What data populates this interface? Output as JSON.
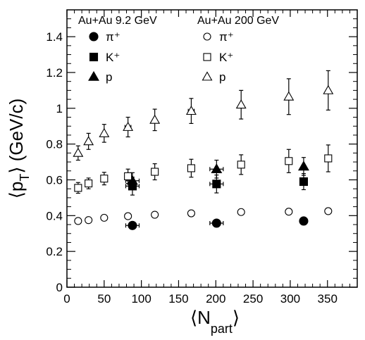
{
  "chart_data": {
    "type": "scatter",
    "xlabel": "⟨N",
    "xlabel_sub": "part",
    "xlabel_close": "⟩",
    "ylabel": "⟨p",
    "ylabel_sub": "T",
    "ylabel_rest": "⟩ (GeV/c)",
    "xlim": [
      0,
      390
    ],
    "ylim": [
      0,
      1.55
    ],
    "xticks": [
      0,
      50,
      100,
      150,
      200,
      250,
      300,
      350
    ],
    "yticks": [
      0,
      0.2,
      0.4,
      0.6,
      0.8,
      1,
      1.2,
      1.4
    ],
    "xtick_labels": [
      "0",
      "50",
      "100",
      "150",
      "200",
      "250",
      "300",
      "350"
    ],
    "ytick_labels": [
      "0",
      "0.2",
      "0.4",
      "0.6",
      "0.8",
      "1",
      "1.2",
      "1.4"
    ],
    "grid": false,
    "legend": {
      "placement": "top",
      "groups": [
        {
          "title": "Au+Au 9.2 GeV",
          "entries": [
            "π⁺",
            "K⁺",
            "p"
          ]
        },
        {
          "title": "Au+Au 200 GeV",
          "entries": [
            "π⁺",
            "K⁺",
            "p"
          ]
        }
      ]
    },
    "series": [
      {
        "name": "π⁺",
        "group": "Au+Au 9.2 GeV",
        "marker": "circle",
        "filled": true,
        "points": [
          {
            "x": 88,
            "y": 0.345,
            "yerr": 0,
            "xerr": 9
          },
          {
            "x": 201,
            "y": 0.358,
            "yerr": 0,
            "xerr": 9
          },
          {
            "x": 318,
            "y": 0.37,
            "yerr": 0,
            "xerr": 0
          }
        ]
      },
      {
        "name": "K⁺",
        "group": "Au+Au 9.2 GeV",
        "marker": "square",
        "filled": true,
        "points": [
          {
            "x": 88,
            "y": 0.565,
            "yerr": 0.05,
            "xerr": 9
          },
          {
            "x": 201,
            "y": 0.577,
            "yerr": 0.05,
            "xerr": 9
          },
          {
            "x": 318,
            "y": 0.59,
            "yerr": 0.045,
            "xerr": 0
          }
        ]
      },
      {
        "name": "p",
        "group": "Au+Au 9.2 GeV",
        "marker": "triangle",
        "filled": true,
        "points": [
          {
            "x": 88,
            "y": 0.595,
            "yerr": 0.045,
            "xerr": 9
          },
          {
            "x": 201,
            "y": 0.66,
            "yerr": 0.05,
            "xerr": 9
          },
          {
            "x": 318,
            "y": 0.675,
            "yerr": 0.05,
            "xerr": 0
          }
        ]
      },
      {
        "name": "π⁺",
        "group": "Au+Au 200 GeV",
        "marker": "circle",
        "filled": false,
        "points": [
          {
            "x": 15,
            "y": 0.37,
            "yerr": 0.005
          },
          {
            "x": 29,
            "y": 0.375,
            "yerr": 0.005
          },
          {
            "x": 50,
            "y": 0.388,
            "yerr": 0.005
          },
          {
            "x": 82,
            "y": 0.397,
            "yerr": 0.005,
            "xerr": 4
          },
          {
            "x": 118,
            "y": 0.405,
            "yerr": 0.005
          },
          {
            "x": 167,
            "y": 0.413,
            "yerr": 0.005,
            "xerr": 4
          },
          {
            "x": 234,
            "y": 0.42,
            "yerr": 0.005
          },
          {
            "x": 298,
            "y": 0.422,
            "yerr": 0.005
          },
          {
            "x": 351,
            "y": 0.425,
            "yerr": 0.005
          }
        ]
      },
      {
        "name": "K⁺",
        "group": "Au+Au 200 GeV",
        "marker": "square",
        "filled": false,
        "points": [
          {
            "x": 15,
            "y": 0.555,
            "yerr": 0.03
          },
          {
            "x": 29,
            "y": 0.58,
            "yerr": 0.03
          },
          {
            "x": 50,
            "y": 0.607,
            "yerr": 0.035
          },
          {
            "x": 82,
            "y": 0.62,
            "yerr": 0.04,
            "xerr": 4
          },
          {
            "x": 118,
            "y": 0.645,
            "yerr": 0.045
          },
          {
            "x": 167,
            "y": 0.665,
            "yerr": 0.05,
            "xerr": 4
          },
          {
            "x": 234,
            "y": 0.685,
            "yerr": 0.055
          },
          {
            "x": 298,
            "y": 0.705,
            "yerr": 0.065
          },
          {
            "x": 351,
            "y": 0.72,
            "yerr": 0.075
          }
        ]
      },
      {
        "name": "p",
        "group": "Au+Au 200 GeV",
        "marker": "triangle",
        "filled": false,
        "points": [
          {
            "x": 15,
            "y": 0.75,
            "yerr": 0.04
          },
          {
            "x": 29,
            "y": 0.815,
            "yerr": 0.045
          },
          {
            "x": 50,
            "y": 0.86,
            "yerr": 0.05
          },
          {
            "x": 82,
            "y": 0.895,
            "yerr": 0.055,
            "xerr": 4
          },
          {
            "x": 118,
            "y": 0.935,
            "yerr": 0.06
          },
          {
            "x": 167,
            "y": 0.985,
            "yerr": 0.07,
            "xerr": 4
          },
          {
            "x": 234,
            "y": 1.02,
            "yerr": 0.08
          },
          {
            "x": 298,
            "y": 1.065,
            "yerr": 0.1
          },
          {
            "x": 351,
            "y": 1.1,
            "yerr": 0.11
          }
        ]
      }
    ]
  }
}
